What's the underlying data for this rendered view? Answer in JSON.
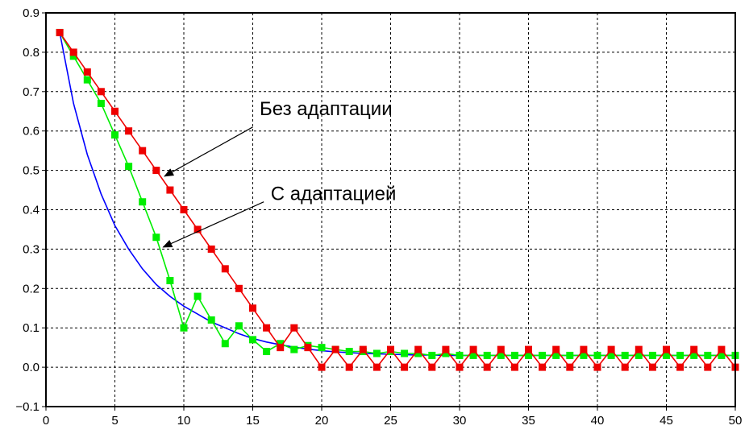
{
  "chart_data": {
    "type": "line",
    "title": "",
    "xlabel": "",
    "ylabel": "",
    "xlim": [
      0,
      50
    ],
    "ylim": [
      -0.1,
      0.9
    ],
    "grid": true,
    "x_ticks": [
      0,
      5,
      10,
      15,
      20,
      25,
      30,
      35,
      40,
      45,
      50
    ],
    "y_ticks": [
      -0.1,
      0.0,
      0.1,
      0.2,
      0.3,
      0.4,
      0.5,
      0.6,
      0.7,
      0.8,
      0.9
    ],
    "x_tick_labels": [
      "0",
      "5",
      "10",
      "15",
      "20",
      "25",
      "30",
      "35",
      "40",
      "45",
      "50"
    ],
    "y_tick_labels": [
      "−0.1",
      "0.0",
      "0.1",
      "0.2",
      "0.3",
      "0.4",
      "0.5",
      "0.6",
      "0.7",
      "0.8",
      "0.9"
    ],
    "series": [
      {
        "color": "#0000ff",
        "marker": "none",
        "x": [
          1,
          2,
          3,
          4,
          5,
          6,
          7,
          8,
          9,
          10,
          11,
          12,
          13,
          14,
          15,
          16,
          17,
          18,
          19,
          20,
          21,
          22,
          23,
          24,
          25,
          26,
          27,
          28,
          29,
          30,
          31,
          32,
          33,
          34,
          35,
          36,
          37,
          38,
          39,
          40,
          41,
          42,
          43,
          44,
          45,
          46,
          47,
          48,
          49,
          50
        ],
        "y": [
          0.85,
          0.67,
          0.54,
          0.44,
          0.36,
          0.3,
          0.25,
          0.21,
          0.18,
          0.155,
          0.135,
          0.115,
          0.1,
          0.085,
          0.073,
          0.064,
          0.057,
          0.051,
          0.046,
          0.042,
          0.039,
          0.037,
          0.035,
          0.034,
          0.033,
          0.032,
          0.031,
          0.031,
          0.03,
          0.03,
          0.03,
          0.03,
          0.03,
          0.03,
          0.03,
          0.03,
          0.03,
          0.03,
          0.03,
          0.03,
          0.03,
          0.03,
          0.03,
          0.03,
          0.03,
          0.03,
          0.03,
          0.03,
          0.03,
          0.03
        ]
      },
      {
        "color": "#00ee00",
        "marker": "square",
        "x": [
          1,
          2,
          3,
          4,
          5,
          6,
          7,
          8,
          9,
          10,
          11,
          12,
          13,
          14,
          15,
          16,
          17,
          18,
          19,
          20,
          21,
          22,
          23,
          24,
          25,
          26,
          27,
          28,
          29,
          30,
          31,
          32,
          33,
          34,
          35,
          36,
          37,
          38,
          39,
          40,
          41,
          42,
          43,
          44,
          45,
          46,
          47,
          48,
          49,
          50
        ],
        "y": [
          0.85,
          0.79,
          0.73,
          0.67,
          0.59,
          0.51,
          0.42,
          0.33,
          0.22,
          0.1,
          0.18,
          0.12,
          0.06,
          0.105,
          0.07,
          0.04,
          0.06,
          0.045,
          0.055,
          0.05,
          0.045,
          0.04,
          0.04,
          0.035,
          0.04,
          0.035,
          0.035,
          0.03,
          0.035,
          0.03,
          0.03,
          0.03,
          0.03,
          0.03,
          0.03,
          0.03,
          0.03,
          0.03,
          0.03,
          0.03,
          0.03,
          0.03,
          0.03,
          0.03,
          0.03,
          0.03,
          0.03,
          0.03,
          0.03,
          0.03
        ]
      },
      {
        "color": "#ee0000",
        "marker": "square",
        "x": [
          1,
          2,
          3,
          4,
          5,
          6,
          7,
          8,
          9,
          10,
          11,
          12,
          13,
          14,
          15,
          16,
          17,
          18,
          19,
          20,
          21,
          22,
          23,
          24,
          25,
          26,
          27,
          28,
          29,
          30,
          31,
          32,
          33,
          34,
          35,
          36,
          37,
          38,
          39,
          40,
          41,
          42,
          43,
          44,
          45,
          46,
          47,
          48,
          49,
          50
        ],
        "y": [
          0.85,
          0.8,
          0.75,
          0.7,
          0.65,
          0.6,
          0.55,
          0.5,
          0.45,
          0.4,
          0.35,
          0.3,
          0.25,
          0.2,
          0.15,
          0.1,
          0.05,
          0.1,
          0.05,
          0.0,
          0.045,
          0.0,
          0.045,
          0.0,
          0.045,
          0.0,
          0.045,
          0.0,
          0.045,
          0.0,
          0.045,
          0.0,
          0.045,
          0.0,
          0.045,
          0.0,
          0.045,
          0.0,
          0.045,
          0.0,
          0.045,
          0.0,
          0.045,
          0.0,
          0.045,
          0.0,
          0.045,
          0.0,
          0.045,
          0.0
        ]
      }
    ],
    "annotations": [
      {
        "text": "Без адаптации",
        "text_at": [
          15.5,
          0.64
        ],
        "arrow_from": [
          15.0,
          0.61
        ],
        "arrow_to": [
          8.6,
          0.485
        ],
        "arrow_color": "#000000"
      },
      {
        "text": "С адаптацией",
        "text_at": [
          16.3,
          0.425
        ],
        "arrow_from": [
          15.8,
          0.42
        ],
        "arrow_to": [
          8.5,
          0.305
        ],
        "arrow_color": "#000000"
      }
    ]
  }
}
